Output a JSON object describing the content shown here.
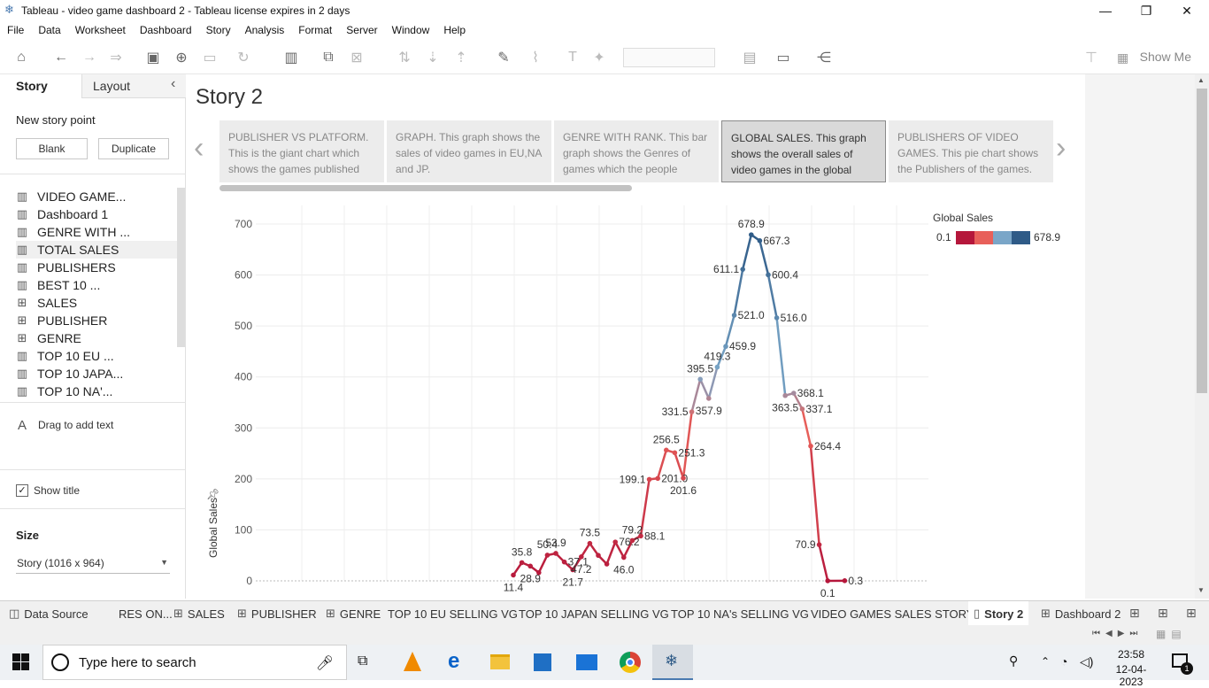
{
  "window": {
    "title": "Tableau - video game dashboard 2 - Tableau license expires in 2 days",
    "minimize": "—",
    "restore": "❐",
    "close": "✕"
  },
  "menu": [
    "File",
    "Data",
    "Worksheet",
    "Dashboard",
    "Story",
    "Analysis",
    "Format",
    "Server",
    "Window",
    "Help"
  ],
  "toolbar": {
    "show_me": "Show Me"
  },
  "left_pane": {
    "tab_story": "Story",
    "tab_layout": "Layout",
    "collapse": "‹",
    "new_story_point": "New story point",
    "blank_button": "Blank",
    "duplicate_button": "Duplicate",
    "sheets": [
      {
        "label": "VIDEO GAME...",
        "type": "chart"
      },
      {
        "label": "Dashboard 1",
        "type": "chart"
      },
      {
        "label": "GENRE WITH ...",
        "type": "chart"
      },
      {
        "label": "TOTAL SALES",
        "type": "chart"
      },
      {
        "label": "PUBLISHERS",
        "type": "chart"
      },
      {
        "label": "BEST 10 ...",
        "type": "chart"
      },
      {
        "label": "SALES",
        "type": "grid"
      },
      {
        "label": "PUBLISHER",
        "type": "grid"
      },
      {
        "label": "GENRE",
        "type": "grid"
      },
      {
        "label": "TOP 10 EU ...",
        "type": "chart"
      },
      {
        "label": "TOP 10 JAPA...",
        "type": "chart"
      },
      {
        "label": "TOP 10 NA'...",
        "type": "chart"
      }
    ],
    "drag_text_icon": "A",
    "drag_text": "Drag to add text",
    "show_title": "Show title",
    "size_label": "Size",
    "size_value": "Story (1016 x 964)"
  },
  "story": {
    "title": "Story 2",
    "points": [
      {
        "text": "PUBLISHER VS PLATFORM. This is the giant chart which shows  the games published",
        "selected": false
      },
      {
        "text": "GRAPH. This graph shows the sales of video games in EU,NA and JP.",
        "selected": false
      },
      {
        "text": "GENRE  WITH RANK. This bar graph shows the Genres of games which the people",
        "selected": false
      },
      {
        "text": "GLOBAL SALES. This graph shows the overall sales of video games in the global",
        "selected": true
      },
      {
        "text": "PUBLISHERS OF VIDEO GAMES. This pie chart shows the Publishers of the games.",
        "selected": false
      }
    ],
    "nav_prev": "‹",
    "nav_next": "›"
  },
  "chart_data": {
    "type": "line",
    "ylabel": "Global Sales",
    "ylim": [
      0,
      700
    ],
    "yticks": [
      0,
      100,
      200,
      300,
      400,
      500,
      600,
      700
    ],
    "legend": {
      "title": "Global Sales",
      "min_label": "0.1",
      "max_label": "678.9",
      "colors": [
        "#b5173b",
        "#e8605a",
        "#7aa6c8",
        "#2f5b87"
      ]
    },
    "points": [
      {
        "x": 1,
        "y": 11.4,
        "label": "11.4"
      },
      {
        "x": 2,
        "y": 35.8,
        "label": "35.8"
      },
      {
        "x": 3,
        "y": 28.9,
        "label": "28.9"
      },
      {
        "x": 4,
        "y": 16.2,
        "label": ""
      },
      {
        "x": 5,
        "y": 50.4,
        "label": "50.4"
      },
      {
        "x": 6,
        "y": 53.9,
        "label": "53.9"
      },
      {
        "x": 7,
        "y": 37.1,
        "label": "37.1"
      },
      {
        "x": 8,
        "y": 21.7,
        "label": "21.7"
      },
      {
        "x": 9,
        "y": 47.2,
        "label": "47.2"
      },
      {
        "x": 10,
        "y": 73.5,
        "label": "73.5"
      },
      {
        "x": 11,
        "y": 50.0,
        "label": ""
      },
      {
        "x": 12,
        "y": 33.0,
        "label": ""
      },
      {
        "x": 13,
        "y": 76.2,
        "label": "76.2"
      },
      {
        "x": 14,
        "y": 46.0,
        "label": "46.0"
      },
      {
        "x": 15,
        "y": 79.2,
        "label": "79.2"
      },
      {
        "x": 16,
        "y": 88.1,
        "label": "88.1"
      },
      {
        "x": 17,
        "y": 199.1,
        "label": "199.1"
      },
      {
        "x": 18,
        "y": 201.0,
        "label": "201.0"
      },
      {
        "x": 19,
        "y": 256.5,
        "label": "256.5"
      },
      {
        "x": 20,
        "y": 251.3,
        "label": "251.3"
      },
      {
        "x": 21,
        "y": 201.6,
        "label": "201.6"
      },
      {
        "x": 22,
        "y": 331.5,
        "label": "331.5"
      },
      {
        "x": 23,
        "y": 395.5,
        "label": "395.5"
      },
      {
        "x": 24,
        "y": 357.9,
        "label": "357.9"
      },
      {
        "x": 25,
        "y": 419.3,
        "label": "419.3"
      },
      {
        "x": 26,
        "y": 459.9,
        "label": "459.9"
      },
      {
        "x": 27,
        "y": 521.0,
        "label": "521.0"
      },
      {
        "x": 28,
        "y": 611.1,
        "label": "611.1"
      },
      {
        "x": 29,
        "y": 678.9,
        "label": "678.9"
      },
      {
        "x": 30,
        "y": 667.3,
        "label": "667.3"
      },
      {
        "x": 31,
        "y": 600.4,
        "label": "600.4"
      },
      {
        "x": 32,
        "y": 516.0,
        "label": "516.0"
      },
      {
        "x": 33,
        "y": 363.5,
        "label": "363.5"
      },
      {
        "x": 34,
        "y": 368.1,
        "label": "368.1"
      },
      {
        "x": 35,
        "y": 337.1,
        "label": "337.1"
      },
      {
        "x": 36,
        "y": 264.4,
        "label": "264.4"
      },
      {
        "x": 37,
        "y": 70.9,
        "label": "70.9"
      },
      {
        "x": 38,
        "y": 0.1,
        "label": "0.1"
      },
      {
        "x": 40,
        "y": 0.3,
        "label": "0.3"
      }
    ]
  },
  "bottom_tabs": [
    {
      "label": "Data Source",
      "icon": "database-icon",
      "active": false
    },
    {
      "label": "RES ON...",
      "icon": "",
      "active": false
    },
    {
      "label": "SALES",
      "icon": "grid-icon",
      "active": false
    },
    {
      "label": "PUBLISHER",
      "icon": "grid-icon",
      "active": false
    },
    {
      "label": "GENRE",
      "icon": "grid-icon",
      "active": false
    },
    {
      "label": "TOP 10 EU SELLING VG",
      "icon": "",
      "active": false
    },
    {
      "label": "TOP 10 JAPAN SELLING VG",
      "icon": "",
      "active": false
    },
    {
      "label": "TOP 10 NA's SELLING VG",
      "icon": "",
      "active": false
    },
    {
      "label": "VIDEO GAMES SALES STORY",
      "icon": "",
      "active": false
    },
    {
      "label": "Story 2",
      "icon": "story-icon",
      "active": true
    },
    {
      "label": "Dashboard 2",
      "icon": "dashboard-icon",
      "active": false
    }
  ],
  "taskbar": {
    "search_placeholder": "Type here to search",
    "time": "23:58",
    "date": "12-04-2023",
    "notification_count": "1"
  }
}
